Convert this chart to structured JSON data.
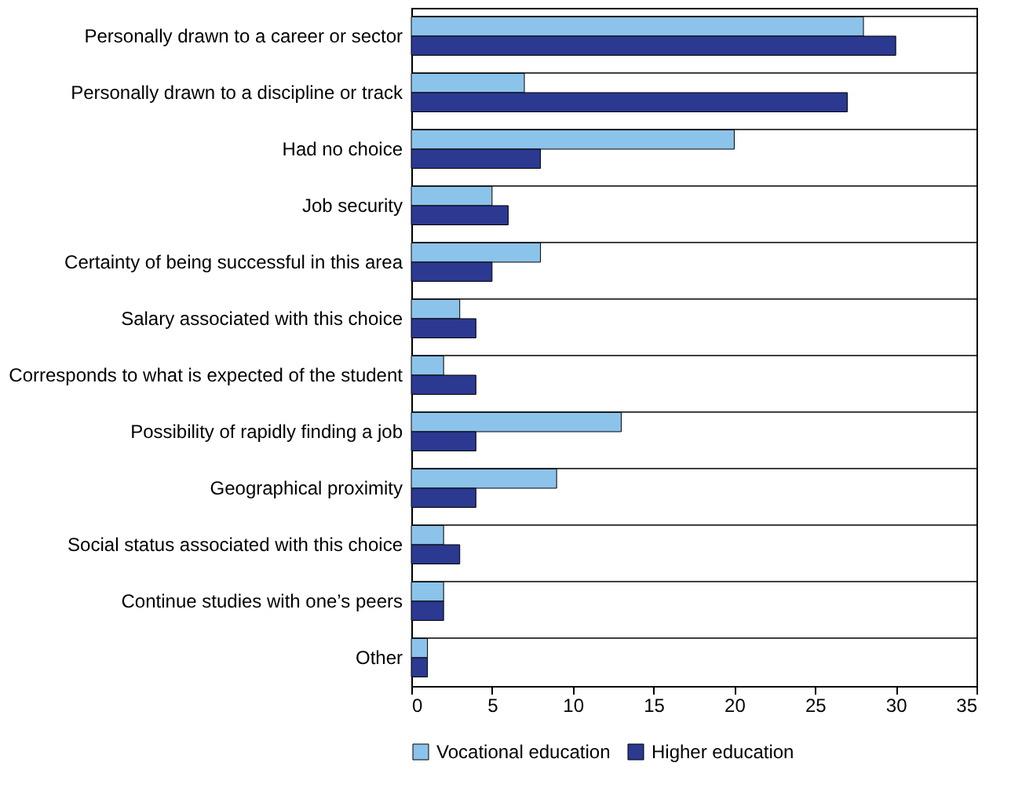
{
  "chart_data": {
    "type": "bar",
    "orientation": "horizontal",
    "categories": [
      "Personally drawn to a career or sector",
      "Personally drawn to a discipline or track",
      "Had no choice",
      "Job security",
      "Certainty of being successful in this area",
      "Salary associated with this choice",
      "Corresponds to what is expected of the student",
      "Possibility of rapidly finding a job",
      "Geographical proximity",
      "Social status associated with this choice",
      "Continue studies with one’s peers",
      "Other"
    ],
    "series": [
      {
        "name": "Vocational education",
        "color": "#8cc3ea",
        "values": [
          28,
          7,
          20,
          5,
          8,
          3,
          2,
          13,
          9,
          2,
          2,
          1
        ]
      },
      {
        "name": "Higher education",
        "color": "#2b3990",
        "values": [
          30,
          27,
          8,
          6,
          5,
          4,
          4,
          4,
          4,
          3,
          2,
          1
        ]
      }
    ],
    "xlim": [
      0,
      35
    ],
    "xticks": [
      0,
      5,
      10,
      15,
      20,
      25,
      30,
      35
    ],
    "grid": "y",
    "legend": "bottom"
  }
}
